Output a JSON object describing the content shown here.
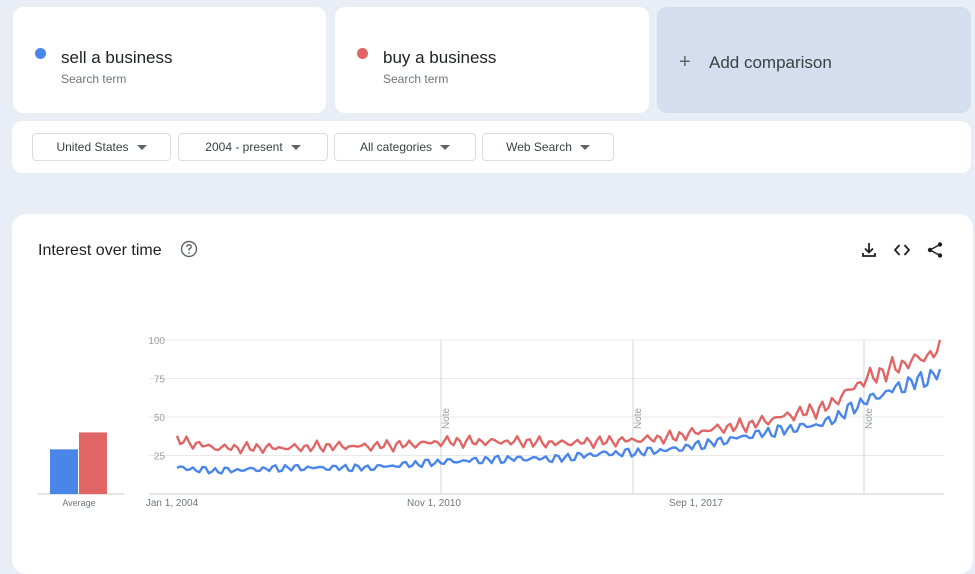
{
  "terms": [
    {
      "label": "sell a business",
      "sublabel": "Search term",
      "color": "#4a86e8"
    },
    {
      "label": "buy a business",
      "sublabel": "Search term",
      "color": "#e06666"
    }
  ],
  "add_comparison": {
    "icon": "plus-icon",
    "label": "Add comparison"
  },
  "filters": {
    "region": "United States",
    "time_range": "2004 - present",
    "category": "All categories",
    "search_type": "Web Search"
  },
  "panel": {
    "title": "Interest over time",
    "icons": [
      "help-icon",
      "download-icon",
      "embed-icon",
      "share-icon"
    ]
  },
  "chart_data": {
    "type": "line",
    "ylim": [
      0,
      100
    ],
    "yticks": [
      25,
      50,
      75,
      100
    ],
    "x_tick_labels": [
      "Jan 1, 2004",
      "Nov 1, 2010",
      "Sep 1, 2017"
    ],
    "notes": [
      "Note",
      "Note",
      "Note"
    ],
    "x": [
      "2004",
      "2005",
      "2006",
      "2007",
      "2008",
      "2009",
      "2010",
      "2011",
      "2012",
      "2013",
      "2014",
      "2015",
      "2016",
      "2017",
      "2018",
      "2019",
      "2020",
      "2021",
      "2022",
      "2023",
      "2024"
    ],
    "series": [
      {
        "name": "sell a business",
        "color": "#4a86e8",
        "values": [
          17,
          15,
          16,
          17,
          17,
          17,
          19,
          21,
          22,
          23,
          23,
          26,
          27,
          29,
          33,
          38,
          42,
          46,
          60,
          70,
          78
        ]
      },
      {
        "name": "buy a business",
        "color": "#e06666",
        "values": [
          35,
          30,
          30,
          30,
          31,
          31,
          32,
          34,
          34,
          34,
          33,
          34,
          35,
          37,
          42,
          45,
          51,
          56,
          74,
          84,
          93
        ]
      }
    ],
    "average": {
      "label": "Average",
      "values": [
        {
          "name": "sell a business",
          "value": 29
        },
        {
          "name": "buy a business",
          "value": 40
        }
      ]
    }
  }
}
